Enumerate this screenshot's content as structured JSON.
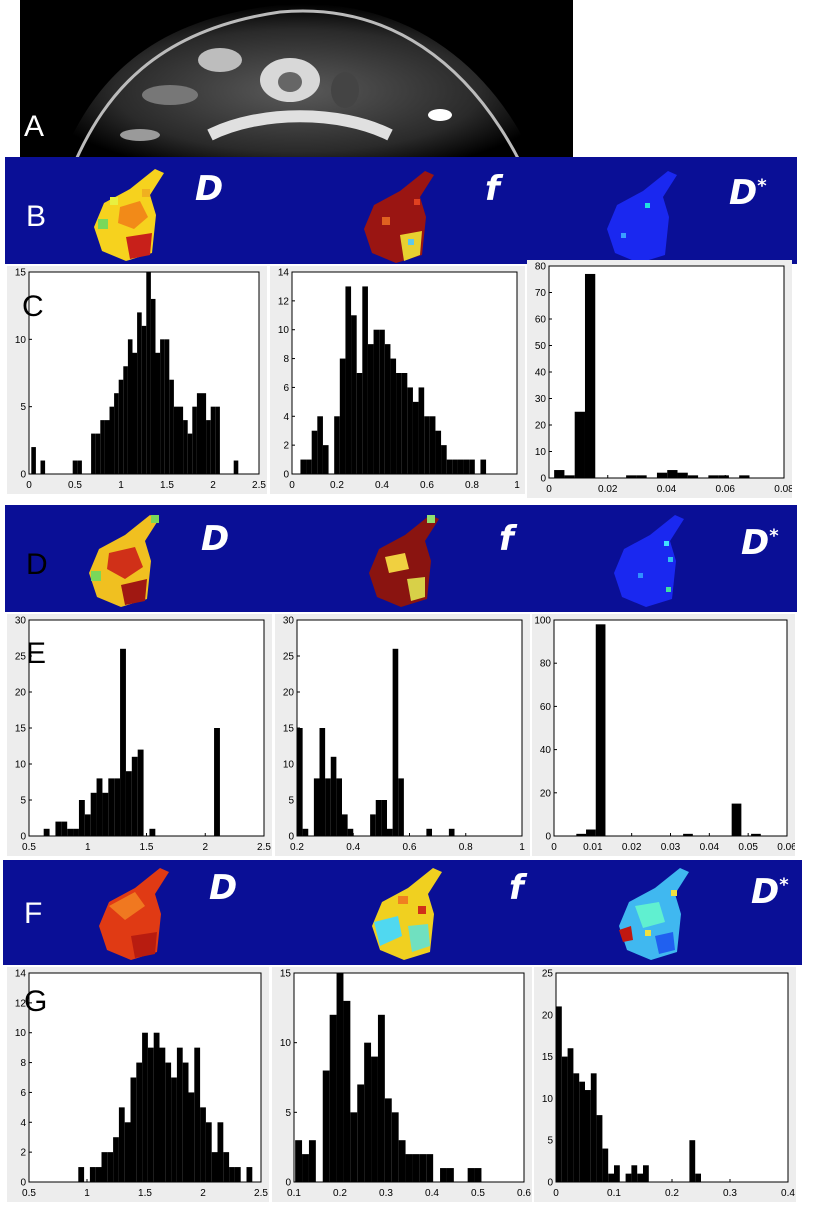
{
  "panel_letters": [
    "A",
    "B",
    "C",
    "D",
    "E",
    "F",
    "G"
  ],
  "map_labels": {
    "D": "D",
    "f": "f",
    "Dstar": "D*"
  },
  "chart_data": [
    {
      "type": "bar",
      "panel": "C",
      "xlim": [
        0,
        2.5
      ],
      "ylim": [
        0,
        15
      ],
      "xticks": [
        "0",
        "0.5",
        "1",
        "1.5",
        "2",
        "2.5"
      ],
      "yticks": [
        "0",
        "5",
        "10",
        "15"
      ],
      "x": [
        0.05,
        0.1,
        0.15,
        0.2,
        0.25,
        0.3,
        0.35,
        0.4,
        0.45,
        0.5,
        0.55,
        0.6,
        0.65,
        0.7,
        0.75,
        0.8,
        0.85,
        0.9,
        0.95,
        1.0,
        1.05,
        1.1,
        1.15,
        1.2,
        1.25,
        1.3,
        1.35,
        1.4,
        1.45,
        1.5,
        1.55,
        1.6,
        1.65,
        1.7,
        1.75,
        1.8,
        1.85,
        1.9,
        1.95,
        2.0,
        2.05,
        2.1,
        2.15,
        2.2,
        2.25,
        2.3,
        2.35,
        2.4,
        2.45
      ],
      "values": [
        2,
        0,
        1,
        0,
        0,
        0,
        0,
        0,
        0,
        1,
        1,
        0,
        0,
        3,
        3,
        4,
        4,
        5,
        6,
        7,
        8,
        10,
        9,
        12,
        11,
        15,
        13,
        9,
        10,
        10,
        7,
        5,
        5,
        4,
        3,
        5,
        6,
        6,
        4,
        5,
        5,
        0,
        0,
        0,
        1,
        0,
        0,
        0,
        0
      ]
    },
    {
      "type": "bar",
      "panel": "C",
      "xlim": [
        0,
        1
      ],
      "ylim": [
        0,
        14
      ],
      "xticks": [
        "0",
        "0.2",
        "0.4",
        "0.6",
        "0.8",
        "1"
      ],
      "yticks": [
        "0",
        "2",
        "4",
        "6",
        "8",
        "10",
        "12",
        "14"
      ],
      "x": [
        0.05,
        0.075,
        0.1,
        0.125,
        0.15,
        0.175,
        0.2,
        0.225,
        0.25,
        0.275,
        0.3,
        0.325,
        0.35,
        0.375,
        0.4,
        0.425,
        0.45,
        0.475,
        0.5,
        0.525,
        0.55,
        0.575,
        0.6,
        0.625,
        0.65,
        0.675,
        0.7,
        0.725,
        0.75,
        0.775,
        0.8,
        0.825,
        0.85,
        0.875
      ],
      "values": [
        1,
        1,
        3,
        4,
        2,
        0,
        4,
        8,
        13,
        11,
        7,
        13,
        9,
        10,
        10,
        9,
        8,
        7,
        7,
        6,
        5,
        6,
        4,
        4,
        3,
        2,
        1,
        1,
        1,
        1,
        1,
        0,
        1,
        0
      ]
    },
    {
      "type": "bar",
      "panel": "C",
      "xlim": [
        0,
        0.08
      ],
      "ylim": [
        0,
        80
      ],
      "xticks": [
        "0",
        "0.02",
        "0.04",
        "0.06",
        "0.08"
      ],
      "yticks": [
        "0",
        "10",
        "20",
        "30",
        "40",
        "50",
        "60",
        "70",
        "80"
      ],
      "x": [
        0.0035,
        0.007,
        0.0105,
        0.014,
        0.0175,
        0.021,
        0.0245,
        0.028,
        0.0315,
        0.035,
        0.0385,
        0.042,
        0.0455,
        0.049,
        0.0525,
        0.056,
        0.0595,
        0.063,
        0.0665
      ],
      "values": [
        3,
        1,
        25,
        77,
        0,
        0,
        0,
        1,
        1,
        0,
        2,
        3,
        2,
        1,
        0,
        1,
        1,
        0,
        1
      ]
    },
    {
      "type": "bar",
      "panel": "E",
      "xlim": [
        0.5,
        2.5
      ],
      "ylim": [
        0,
        30
      ],
      "xticks": [
        "0.5",
        "1",
        "1.5",
        "2",
        "2.5"
      ],
      "yticks": [
        "0",
        "5",
        "10",
        "15",
        "20",
        "25",
        "30"
      ],
      "x": [
        0.6,
        0.65,
        0.7,
        0.75,
        0.8,
        0.85,
        0.9,
        0.95,
        1.0,
        1.05,
        1.1,
        1.15,
        1.2,
        1.25,
        1.3,
        1.35,
        1.4,
        1.45,
        1.5,
        1.55,
        1.6,
        1.65,
        1.7,
        1.75,
        1.8,
        1.85,
        1.9,
        1.95,
        2.0,
        2.05,
        2.1
      ],
      "values": [
        0,
        1,
        0,
        2,
        2,
        1,
        1,
        5,
        3,
        6,
        8,
        6,
        8,
        8,
        26,
        9,
        11,
        12,
        0,
        1,
        0,
        0,
        0,
        0,
        0,
        0,
        0,
        0,
        0,
        0,
        15
      ]
    },
    {
      "type": "bar",
      "panel": "E",
      "xlim": [
        0.2,
        1
      ],
      "ylim": [
        0,
        30
      ],
      "xticks": [
        "0.2",
        "0.4",
        "0.6",
        "0.8",
        "1"
      ],
      "yticks": [
        "0",
        "5",
        "10",
        "15",
        "20",
        "25",
        "30"
      ],
      "x": [
        0.21,
        0.23,
        0.25,
        0.27,
        0.29,
        0.31,
        0.33,
        0.35,
        0.37,
        0.39,
        0.41,
        0.43,
        0.45,
        0.47,
        0.49,
        0.51,
        0.53,
        0.55,
        0.57,
        0.59,
        0.61,
        0.63,
        0.65,
        0.67,
        0.69,
        0.71,
        0.73,
        0.75,
        0.77
      ],
      "values": [
        15,
        1,
        0,
        8,
        15,
        8,
        11,
        8,
        3,
        1,
        0,
        0,
        0,
        3,
        5,
        5,
        1,
        26,
        8,
        0,
        0,
        0,
        0,
        1,
        0,
        0,
        0,
        1,
        0
      ]
    },
    {
      "type": "bar",
      "panel": "E",
      "xlim": [
        0,
        0.06
      ],
      "ylim": [
        0,
        100
      ],
      "xticks": [
        "0",
        "0.01",
        "0.02",
        "0.03",
        "0.04",
        "0.05",
        "0.06"
      ],
      "yticks": [
        "0",
        "20",
        "40",
        "60",
        "80",
        "100"
      ],
      "x": [
        0.0045,
        0.007,
        0.0095,
        0.012,
        0.0145,
        0.017,
        0.0195,
        0.022,
        0.0245,
        0.027,
        0.0295,
        0.032,
        0.0345,
        0.037,
        0.0395,
        0.042,
        0.0445,
        0.047,
        0.0495,
        0.052
      ],
      "values": [
        0,
        1,
        3,
        98,
        0,
        0,
        0,
        0,
        0,
        0,
        0,
        0,
        1,
        0,
        0,
        0,
        0,
        15,
        0,
        1
      ]
    },
    {
      "type": "bar",
      "panel": "G",
      "xlim": [
        0.5,
        2.5
      ],
      "ylim": [
        0,
        14
      ],
      "xticks": [
        "0.5",
        "1",
        "1.5",
        "2",
        "2.5"
      ],
      "yticks": [
        "0",
        "2",
        "4",
        "6",
        "8",
        "10",
        "12",
        "14"
      ],
      "x": [
        0.95,
        1.0,
        1.05,
        1.1,
        1.15,
        1.2,
        1.25,
        1.3,
        1.35,
        1.4,
        1.45,
        1.5,
        1.55,
        1.6,
        1.65,
        1.7,
        1.75,
        1.8,
        1.85,
        1.9,
        1.95,
        2.0,
        2.05,
        2.1,
        2.15,
        2.2,
        2.25,
        2.3,
        2.35,
        2.4,
        2.45
      ],
      "values": [
        1,
        0,
        1,
        1,
        2,
        2,
        3,
        5,
        4,
        7,
        8,
        10,
        9,
        10,
        9,
        8,
        7,
        9,
        8,
        6,
        9,
        5,
        4,
        2,
        4,
        2,
        1,
        1,
        0,
        1,
        0
      ]
    },
    {
      "type": "bar",
      "panel": "G",
      "xlim": [
        0.1,
        0.6
      ],
      "ylim": [
        0,
        15
      ],
      "xticks": [
        "0.1",
        "0.2",
        "0.3",
        "0.4",
        "0.5",
        "0.6"
      ],
      "yticks": [
        "0",
        "5",
        "10",
        "15"
      ],
      "x": [
        0.11,
        0.125,
        0.14,
        0.155,
        0.17,
        0.185,
        0.2,
        0.215,
        0.23,
        0.245,
        0.26,
        0.275,
        0.29,
        0.305,
        0.32,
        0.335,
        0.35,
        0.365,
        0.38,
        0.395,
        0.41,
        0.425,
        0.44,
        0.455,
        0.47,
        0.485,
        0.5
      ],
      "values": [
        3,
        2,
        3,
        0,
        8,
        12,
        15,
        13,
        5,
        7,
        10,
        9,
        12,
        6,
        5,
        3,
        2,
        2,
        2,
        2,
        0,
        1,
        1,
        0,
        0,
        1,
        1
      ]
    },
    {
      "type": "bar",
      "panel": "G",
      "xlim": [
        0,
        0.4
      ],
      "ylim": [
        0,
        25
      ],
      "xticks": [
        "0",
        "0.1",
        "0.2",
        "0.3",
        "0.4"
      ],
      "yticks": [
        "0",
        "5",
        "10",
        "15",
        "20",
        "25"
      ],
      "x": [
        0.005,
        0.015,
        0.025,
        0.035,
        0.045,
        0.055,
        0.065,
        0.075,
        0.085,
        0.095,
        0.105,
        0.115,
        0.125,
        0.135,
        0.145,
        0.155,
        0.165,
        0.175,
        0.185,
        0.195,
        0.205,
        0.215,
        0.225,
        0.235,
        0.245
      ],
      "values": [
        21,
        15,
        16,
        13,
        12,
        11,
        13,
        8,
        4,
        1,
        2,
        0,
        1,
        2,
        1,
        2,
        0,
        0,
        0,
        0,
        0,
        0,
        0,
        5,
        1
      ]
    }
  ]
}
